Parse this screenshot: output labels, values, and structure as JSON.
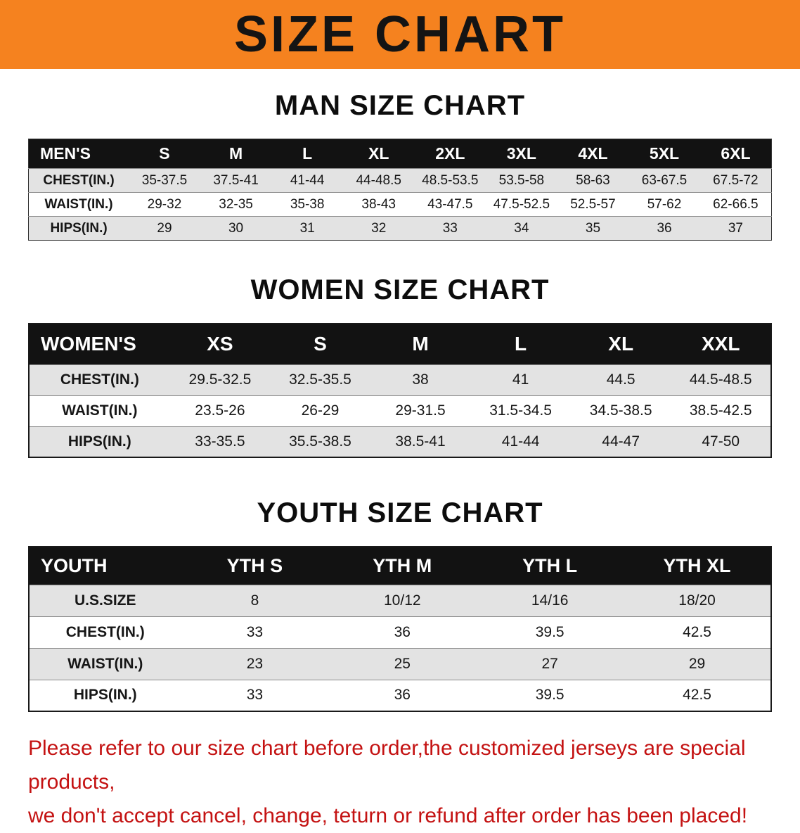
{
  "banner": {
    "title": "SIZE CHART"
  },
  "sections": [
    {
      "heading": "MAN SIZE CHART",
      "table": {
        "name": "mens-size",
        "header": [
          "MEN'S",
          "S",
          "M",
          "L",
          "XL",
          "2XL",
          "3XL",
          "4XL",
          "5XL",
          "6XL"
        ],
        "rows": [
          [
            "CHEST(IN.)",
            "35-37.5",
            "37.5-41",
            "41-44",
            "44-48.5",
            "48.5-53.5",
            "53.5-58",
            "58-63",
            "63-67.5",
            "67.5-72"
          ],
          [
            "WAIST(IN.)",
            "29-32",
            "32-35",
            "35-38",
            "38-43",
            "43-47.5",
            "47.5-52.5",
            "52.5-57",
            "57-62",
            "62-66.5"
          ],
          [
            "HIPS(IN.)",
            "29",
            "30",
            "31",
            "32",
            "33",
            "34",
            "35",
            "36",
            "37"
          ]
        ]
      }
    },
    {
      "heading": "WOMEN SIZE CHART",
      "table": {
        "name": "womens-size",
        "header": [
          "WOMEN'S",
          "XS",
          "S",
          "M",
          "L",
          "XL",
          "XXL"
        ],
        "rows": [
          [
            "CHEST(IN.)",
            "29.5-32.5",
            "32.5-35.5",
            "38",
            "41",
            "44.5",
            "44.5-48.5"
          ],
          [
            "WAIST(IN.)",
            "23.5-26",
            "26-29",
            "29-31.5",
            "31.5-34.5",
            "34.5-38.5",
            "38.5-42.5"
          ],
          [
            "HIPS(IN.)",
            "33-35.5",
            "35.5-38.5",
            "38.5-41",
            "41-44",
            "44-47",
            "47-50"
          ]
        ]
      }
    },
    {
      "heading": "YOUTH SIZE CHART",
      "table": {
        "name": "youth-size",
        "header": [
          "YOUTH",
          "YTH S",
          "YTH M",
          "YTH L",
          "YTH XL"
        ],
        "rows": [
          [
            "U.S.SIZE",
            "8",
            "10/12",
            "14/16",
            "18/20"
          ],
          [
            "CHEST(IN.)",
            "33",
            "36",
            "39.5",
            "42.5"
          ],
          [
            "WAIST(IN.)",
            "23",
            "25",
            "27",
            "29"
          ],
          [
            "HIPS(IN.)",
            "33",
            "36",
            "39.5",
            "42.5"
          ]
        ]
      }
    }
  ],
  "disclaimer": {
    "line1": "Please refer to our size chart before order,the customized jerseys are special products,",
    "line2": "we don't accept cancel, change, teturn or refund after order has been placed!"
  },
  "colors": {
    "banner_bg": "#f5821f",
    "header_bg": "#121212",
    "row_alt": "#e3e3e3",
    "disclaimer": "#c41212"
  }
}
